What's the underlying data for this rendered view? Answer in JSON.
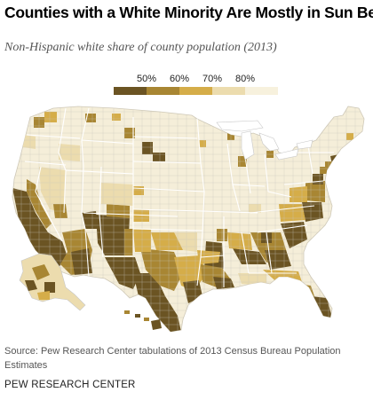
{
  "title": "Counties with a White Minority Are Mostly in Sun Belt",
  "subtitle": "Non-Hispanic white share of county population (2013)",
  "legend": {
    "labels": [
      "50%",
      "60%",
      "70%",
      "80%"
    ],
    "colors": [
      "#6b5423",
      "#a88633",
      "#d5ad49",
      "#ecdcae",
      "#f7f1dd"
    ]
  },
  "source": "Source: Pew Research Center tabulations of 2013 Census Bureau Population Estimates",
  "organization": "PEW RESEARCH CENTER",
  "map_colors": {
    "land": "#f5eed9",
    "lines": "#c7c7c7",
    "water": "#ffffff"
  }
}
